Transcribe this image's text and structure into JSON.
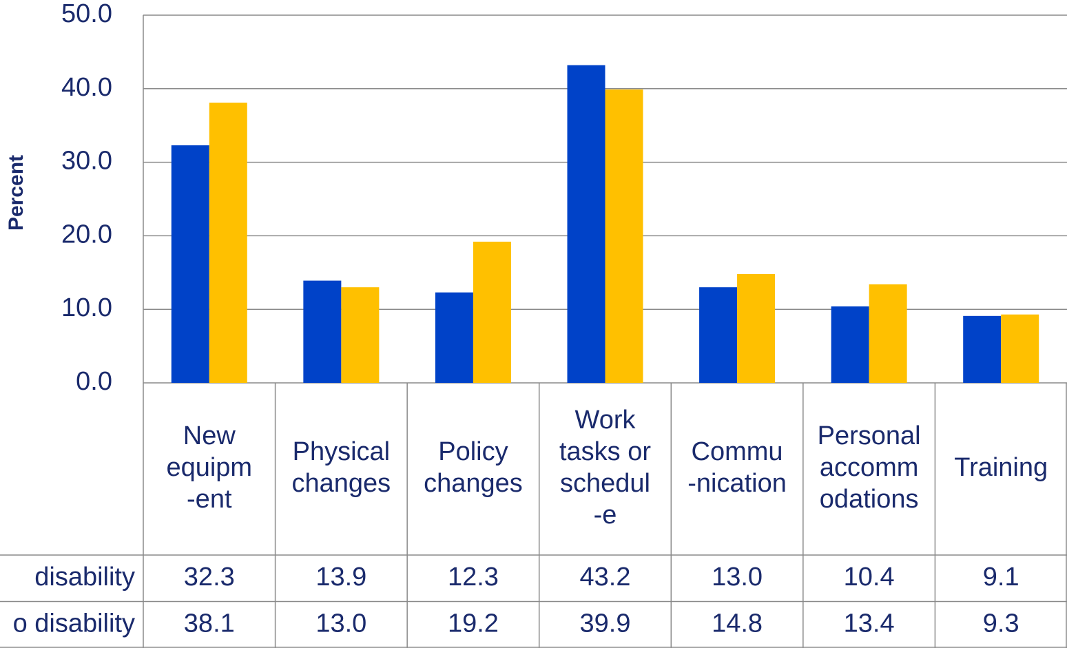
{
  "chart_data": {
    "type": "bar",
    "y_label": "Percent",
    "categories": [
      [
        "New",
        "equipm",
        "-ent"
      ],
      [
        "Physical",
        "changes"
      ],
      [
        "Policy",
        "changes"
      ],
      [
        "Work",
        "tasks or",
        "schedul",
        "-e"
      ],
      [
        "Commu",
        "-nication"
      ],
      [
        "Personal",
        "accomm",
        "odations"
      ],
      [
        "Training"
      ]
    ],
    "series": [
      {
        "name": "disability",
        "color": "#0042c8",
        "values": [
          32.3,
          13.9,
          12.3,
          43.2,
          13.0,
          10.4,
          9.1
        ],
        "value_labels": [
          "32.3",
          "13.9",
          "12.3",
          "43.2",
          "13.0",
          "10.4",
          "9.1"
        ]
      },
      {
        "name": "o disability",
        "color": "#ffc000",
        "values": [
          38.1,
          13.0,
          19.2,
          39.9,
          14.8,
          13.4,
          9.3
        ],
        "value_labels": [
          "38.1",
          "13.0",
          "19.2",
          "39.9",
          "14.8",
          "13.4",
          "9.3"
        ]
      }
    ],
    "ylim": [
      0,
      50
    ],
    "yticks": [
      {
        "value": 0,
        "label": "0.0"
      },
      {
        "value": 10,
        "label": "10.0"
      },
      {
        "value": 20,
        "label": "20.0"
      },
      {
        "value": 30,
        "label": "30.0"
      },
      {
        "value": 40,
        "label": "40.0"
      },
      {
        "value": 50,
        "label": "50.0"
      }
    ],
    "grid": true
  }
}
